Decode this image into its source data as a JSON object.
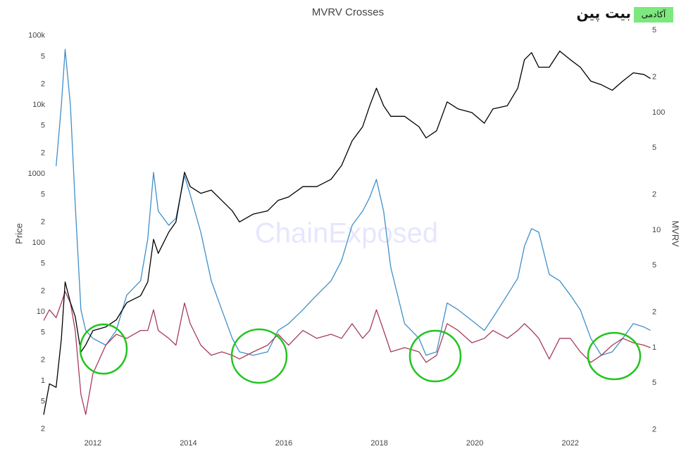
{
  "logo": {
    "brand": "بیت پین",
    "label": "آکادمی"
  },
  "chart_data": {
    "type": "line",
    "title": "MVRV Crosses",
    "ylabel": "Price",
    "y2label": "MVRV",
    "watermark": "ChainExposed",
    "x": [
      2010.97,
      2011.09,
      2011.23,
      2011.34,
      2011.42,
      2011.53,
      2011.63,
      2011.75,
      2011.85,
      2012.0,
      2012.27,
      2012.49,
      2012.71,
      2013.0,
      2013.15,
      2013.27,
      2013.37,
      2013.59,
      2013.74,
      2013.92,
      2014.04,
      2014.26,
      2014.48,
      2014.7,
      2014.92,
      2015.07,
      2015.36,
      2015.66,
      2015.88,
      2016.1,
      2016.4,
      2016.69,
      2016.99,
      2017.21,
      2017.43,
      2017.65,
      2017.8,
      2017.94,
      2018.09,
      2018.24,
      2018.53,
      2018.83,
      2018.98,
      2019.2,
      2019.42,
      2019.65,
      2019.94,
      2020.2,
      2020.38,
      2020.68,
      2020.9,
      2021.04,
      2021.19,
      2021.34,
      2021.56,
      2021.78,
      2022.0,
      2022.21,
      2022.43,
      2022.65,
      2022.88,
      2023.1,
      2023.32,
      2023.54,
      2023.68
    ],
    "series": [
      {
        "color": "#3f8fc9",
        "axis": "y2",
        "values": [
          null,
          null,
          35,
          115,
          345,
          115,
          16.6,
          2.1,
          1.4,
          1.2,
          1.05,
          1.4,
          2.8,
          3.7,
          8.4,
          31,
          14.5,
          11,
          12.6,
          29,
          20,
          9.6,
          3.7,
          2.1,
          1.2,
          0.92,
          0.86,
          0.92,
          1.4,
          1.6,
          2.1,
          2.8,
          3.7,
          5.5,
          11,
          14.5,
          19,
          27,
          14.5,
          4.8,
          1.6,
          1.2,
          0.86,
          0.92,
          2.4,
          2.1,
          1.7,
          1.4,
          1.8,
          2.8,
          3.9,
          7.3,
          10.3,
          9.6,
          4.2,
          3.7,
          2.8,
          2.1,
          1.2,
          0.86,
          0.92,
          1.2,
          1.6,
          1.5,
          1.4
        ]
      },
      {
        "color": "#a63d5a",
        "axis": "y2",
        "values": [
          1.7,
          2.1,
          1.8,
          2.4,
          3.0,
          2.4,
          1.4,
          0.4,
          0.27,
          0.6,
          1.05,
          1.3,
          1.2,
          1.4,
          1.4,
          2.1,
          1.4,
          1.2,
          1.05,
          2.4,
          1.6,
          1.05,
          0.86,
          0.92,
          0.86,
          0.8,
          0.92,
          1.05,
          1.3,
          1.05,
          1.4,
          1.2,
          1.3,
          1.2,
          1.6,
          1.2,
          1.4,
          2.1,
          1.4,
          0.92,
          1.0,
          0.92,
          0.75,
          0.86,
          1.6,
          1.4,
          1.1,
          1.2,
          1.4,
          1.2,
          1.4,
          1.6,
          1.4,
          1.2,
          0.8,
          1.2,
          1.2,
          0.92,
          0.75,
          0.86,
          1.05,
          1.2,
          1.1,
          1.05,
          1.0
        ]
      },
      {
        "color": "#000000",
        "axis": "y",
        "values": [
          0.32,
          0.9,
          0.8,
          4,
          27,
          13.5,
          8.5,
          2.6,
          3.3,
          5.3,
          6,
          7.6,
          13.5,
          17,
          27,
          112,
          70,
          142,
          200,
          1050,
          650,
          520,
          580,
          410,
          290,
          200,
          260,
          290,
          410,
          460,
          650,
          650,
          830,
          1320,
          3000,
          4800,
          9700,
          17400,
          9700,
          6800,
          6800,
          4800,
          3300,
          4200,
          11000,
          8700,
          7700,
          5400,
          8700,
          9700,
          17400,
          45000,
          57000,
          35000,
          35000,
          60000,
          45000,
          35000,
          22000,
          19500,
          16200,
          22000,
          29000,
          27500,
          24000
        ]
      }
    ],
    "xlim": [
      2010.94,
      2023.7
    ],
    "xticks": [
      2012,
      2014,
      2016,
      2018,
      2020,
      2022
    ],
    "ylim": [
      0.156,
      129000
    ],
    "log_y": true,
    "yticks": [
      {
        "value": 0.2,
        "label": "2"
      },
      {
        "value": 0.5,
        "label": "5"
      },
      1,
      2,
      5,
      10,
      {
        "value": 20,
        "label": "2"
      },
      {
        "value": 50,
        "label": "5"
      },
      100,
      {
        "value": 200,
        "label": "2"
      },
      {
        "value": 500,
        "label": "5"
      },
      1000,
      {
        "value": 2000,
        "label": "2"
      },
      {
        "value": 5000,
        "label": "5"
      },
      {
        "value": 10000,
        "label": "10k"
      },
      {
        "value": 20000,
        "label": "2"
      },
      {
        "value": 50000,
        "label": "5"
      },
      {
        "value": 100000,
        "label": "100k"
      }
    ],
    "y2lim": [
      0.176,
      523
    ],
    "log_y2": true,
    "y2ticks": [
      {
        "value": 0.2,
        "label": "2"
      },
      {
        "value": 0.5,
        "label": "5"
      },
      1,
      2,
      5,
      10,
      {
        "value": 20,
        "label": "2"
      },
      {
        "value": 50,
        "label": "5"
      },
      100,
      {
        "value": 200,
        "label": "2"
      },
      {
        "value": 500,
        "label": "5"
      }
    ],
    "grid": false
  }
}
